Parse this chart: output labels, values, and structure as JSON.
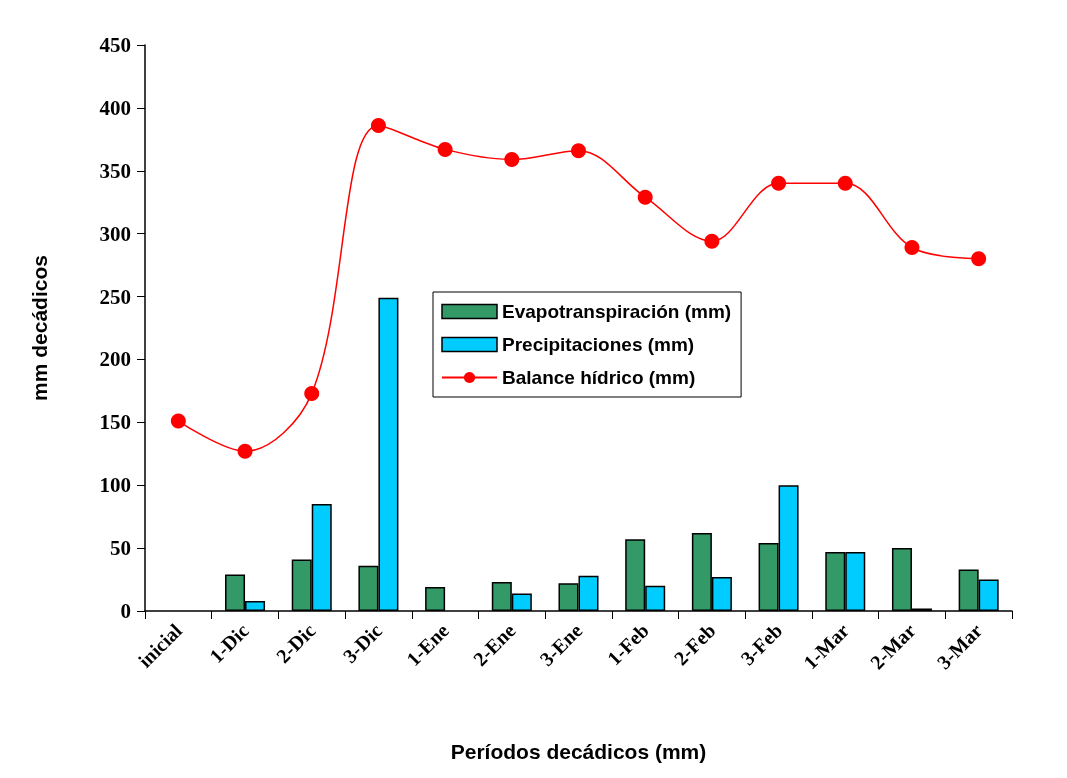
{
  "chart_data": {
    "type": "bar",
    "xlabel": "Períodos decádicos (mm)",
    "ylabel": "mm decádicos",
    "categories": [
      "inicial",
      "1-Dic",
      "2-Dic",
      "3-Dic",
      "1-Ene",
      "2-Ene",
      "3-Ene",
      "1-Feb",
      "2-Feb",
      "3-Feb",
      "1-Mar",
      "2-Mar",
      "3-Mar"
    ],
    "series": [
      {
        "name": "Evapotranspiración (mm)",
        "color": "#339966",
        "values": [
          null,
          29,
          41,
          36,
          19,
          23,
          22,
          57,
          62,
          54,
          47,
          50,
          33
        ]
      },
      {
        "name": "Precipitaciones (mm)",
        "color": "#00ccff",
        "values": [
          null,
          8,
          85,
          249,
          null,
          14,
          28,
          20,
          27,
          100,
          47,
          2,
          25
        ]
      },
      {
        "name": "Balance hídrico (mm)",
        "type": "line",
        "color": "#ff0000",
        "marker": "circle",
        "line_style": "solid",
        "values": [
          151,
          127,
          173,
          386,
          367,
          359,
          366,
          329,
          294,
          340,
          340,
          289,
          280
        ]
      }
    ],
    "ylim": [
      0,
      450
    ],
    "yticks": [
      0,
      50,
      100,
      150,
      200,
      250,
      300,
      350,
      400,
      450
    ],
    "grid": false,
    "legend": "center"
  }
}
